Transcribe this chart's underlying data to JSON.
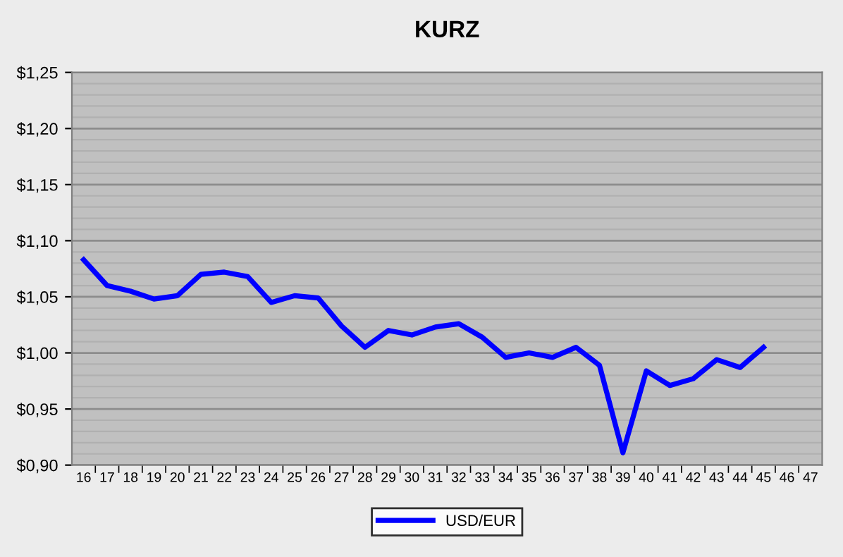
{
  "chart_data": {
    "type": "line",
    "title": "KURZ",
    "categories": [
      "16",
      "17",
      "18",
      "19",
      "20",
      "21",
      "22",
      "23",
      "24",
      "25",
      "26",
      "27",
      "28",
      "29",
      "30",
      "31",
      "32",
      "33",
      "34",
      "35",
      "36",
      "37",
      "38",
      "39",
      "40",
      "41",
      "42",
      "43",
      "44",
      "45",
      "46",
      "47"
    ],
    "series": [
      {
        "name": "USD/EUR",
        "color": "#0000ff",
        "values": [
          1.083,
          1.06,
          1.055,
          1.048,
          1.051,
          1.07,
          1.072,
          1.068,
          1.045,
          1.051,
          1.049,
          1.024,
          1.005,
          1.02,
          1.016,
          1.023,
          1.026,
          1.014,
          0.996,
          1.0,
          0.996,
          1.005,
          0.989,
          0.911,
          0.984,
          0.971,
          0.977,
          0.994,
          0.987,
          1.005,
          null,
          null
        ]
      }
    ],
    "ylim": [
      0.9,
      1.25
    ],
    "yticks": [
      {
        "value": 0.9,
        "label": "$0,90"
      },
      {
        "value": 0.95,
        "label": "$0,95"
      },
      {
        "value": 1.0,
        "label": "$1,00"
      },
      {
        "value": 1.05,
        "label": "$1,05"
      },
      {
        "value": 1.1,
        "label": "$1,10"
      },
      {
        "value": 1.15,
        "label": "$1,15"
      },
      {
        "value": 1.2,
        "label": "$1,20"
      },
      {
        "value": 1.25,
        "label": "$1,25"
      }
    ],
    "grid": "y",
    "legend": "bottom",
    "marker": "none",
    "line_style": "solid"
  }
}
